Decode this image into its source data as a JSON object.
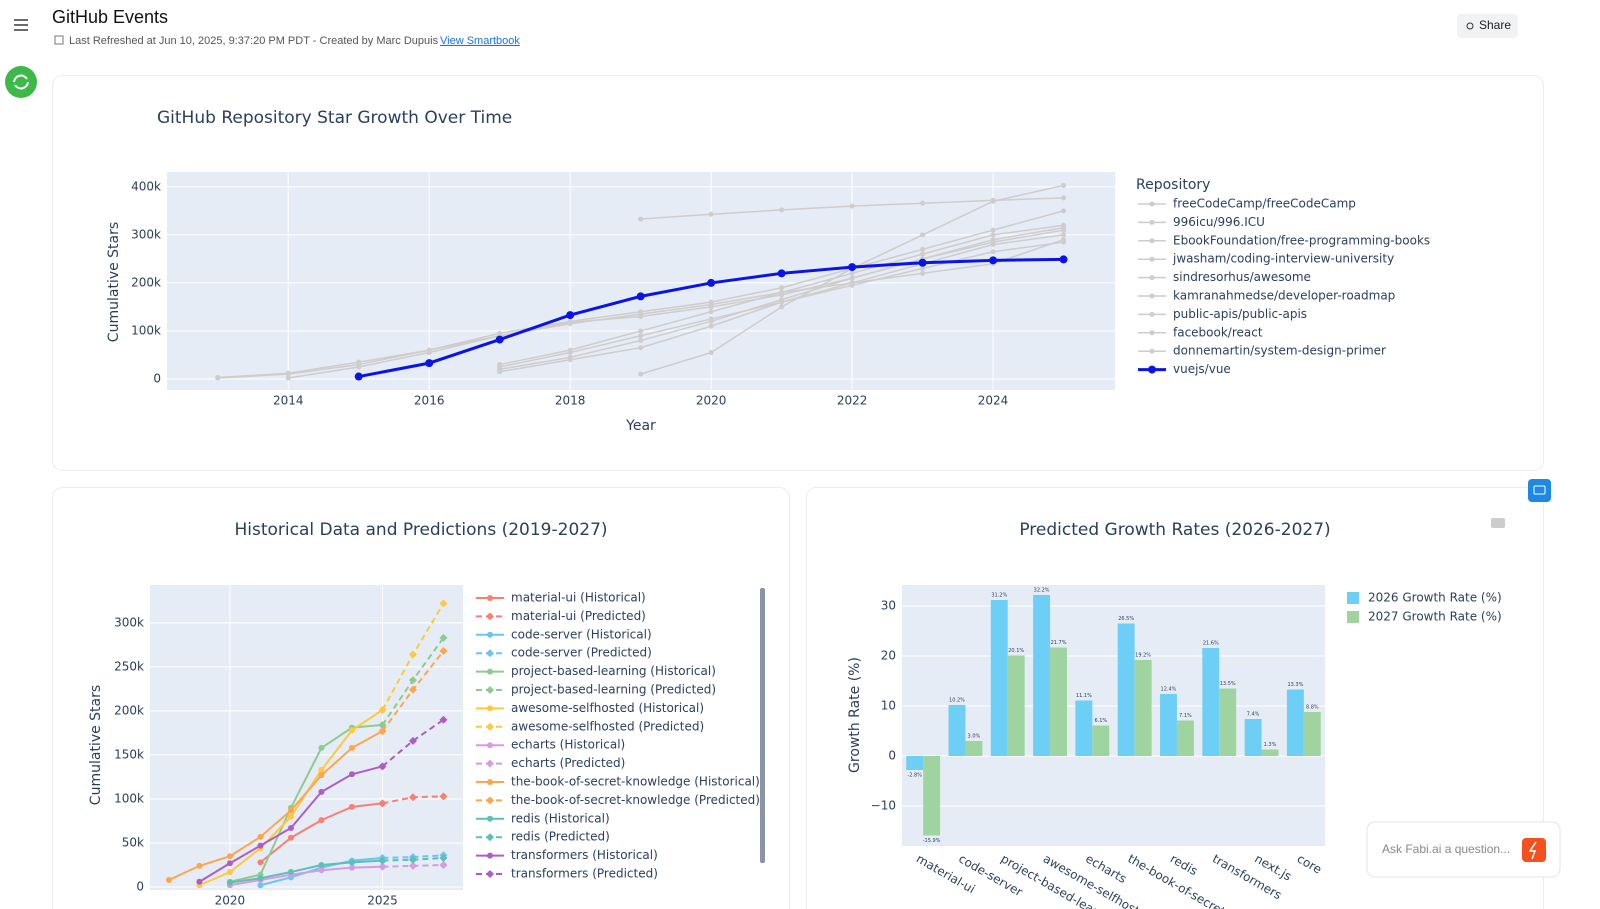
{
  "header": {
    "title": "GitHub Events",
    "subtitle": "Last Refreshed at Jun 10, 2025, 9:37:20 PM PDT - Created by Marc Dupuis",
    "link": "View Smartbook",
    "share": "Share"
  },
  "assistant": {
    "placeholder": "Ask Fabi.ai a question..."
  },
  "chart_data": [
    {
      "type": "line",
      "title": "GitHub Repository Star Growth Over Time",
      "x_label": "Year",
      "y_label": "Cumulative Stars",
      "legend_title": "Repository",
      "x": [
        2013,
        2014,
        2015,
        2016,
        2017,
        2018,
        2019,
        2020,
        2021,
        2022,
        2023,
        2024,
        2025
      ],
      "xlim": [
        2012.28,
        2025.73
      ],
      "xticks": [
        2014,
        2016,
        2018,
        2020,
        2022,
        2024
      ],
      "ylim": [
        -23000,
        431000
      ],
      "yticks": [
        0,
        {
          "value": 100000,
          "label": "100k"
        },
        {
          "value": 200000,
          "label": "200k"
        },
        {
          "value": 300000,
          "label": "300k"
        },
        {
          "value": 400000,
          "label": "400k"
        }
      ],
      "grid": true,
      "series": [
        {
          "name": "freeCodeCamp/freeCodeCamp",
          "color": "#cfcccc",
          "width": 1.5,
          "values": [
            null,
            null,
            null,
            null,
            null,
            null,
            333000,
            343000,
            352000,
            360000,
            366000,
            372000,
            377000
          ]
        },
        {
          "name": "996icu/996.ICU",
          "color": "#cfcccc",
          "width": 1.5,
          "values": [
            null,
            null,
            null,
            null,
            null,
            null,
            10000,
            55000,
            150000,
            230000,
            300000,
            370000,
            403000
          ]
        },
        {
          "name": "EbookFoundation/free-programming-books",
          "color": "#cfcccc",
          "width": 1.5,
          "values": [
            3000,
            12000,
            35000,
            60000,
            95000,
            120000,
            140000,
            160000,
            190000,
            230000,
            270000,
            310000,
            350000
          ]
        },
        {
          "name": "jwasham/coding-interview-university",
          "color": "#cfcccc",
          "width": 1.5,
          "values": [
            null,
            2000,
            25000,
            55000,
            90000,
            118000,
            130000,
            150000,
            175000,
            210000,
            250000,
            290000,
            315000
          ]
        },
        {
          "name": "sindresorhus/awesome",
          "color": "#cfcccc",
          "width": 1.5,
          "values": [
            null,
            null,
            null,
            null,
            30000,
            60000,
            100000,
            140000,
            180000,
            220000,
            260000,
            300000,
            320000
          ]
        },
        {
          "name": "kamranahmedse/developer-roadmap",
          "color": "#cfcccc",
          "width": 1.5,
          "values": [
            null,
            null,
            null,
            null,
            20000,
            45000,
            80000,
            120000,
            165000,
            210000,
            250000,
            285000,
            310000
          ]
        },
        {
          "name": "public-apis/public-apis",
          "color": "#cfcccc",
          "width": 1.5,
          "values": [
            null,
            null,
            null,
            null,
            15000,
            40000,
            65000,
            110000,
            160000,
            200000,
            240000,
            280000,
            300000
          ]
        },
        {
          "name": "facebook/react",
          "color": "#cfcccc",
          "width": 1.5,
          "values": [
            2000,
            10000,
            30000,
            60000,
            90000,
            115000,
            135000,
            155000,
            180000,
            200000,
            220000,
            240000,
            290000
          ]
        },
        {
          "name": "donnemartin/system-design-primer",
          "color": "#cfcccc",
          "width": 1.5,
          "values": [
            null,
            null,
            null,
            null,
            25000,
            55000,
            90000,
            125000,
            160000,
            195000,
            230000,
            265000,
            285000
          ]
        },
        {
          "name": "vuejs/vue",
          "color": "#0a14e6",
          "width": 3,
          "values": [
            null,
            null,
            5000,
            33000,
            82000,
            133000,
            172000,
            200000,
            220000,
            233000,
            242000,
            247000,
            249000
          ]
        }
      ]
    },
    {
      "type": "line",
      "title": "Historical Data and Predictions (2019-2027)",
      "y_label": "Cumulative Stars",
      "x": [
        2018,
        2019,
        2020,
        2021,
        2022,
        2023,
        2024,
        2025,
        2026,
        2027
      ],
      "xlim": [
        2017.38,
        2027.64
      ],
      "xticks": [
        2020,
        2025
      ],
      "ylim": [
        -3400,
        343000
      ],
      "yticks": [
        0,
        {
          "value": 50000,
          "label": "50k"
        },
        {
          "value": 100000,
          "label": "100k"
        },
        {
          "value": 150000,
          "label": "150k"
        },
        {
          "value": 200000,
          "label": "200k"
        },
        {
          "value": 250000,
          "label": "250k"
        },
        {
          "value": 300000,
          "label": "300k"
        }
      ],
      "grid": true,
      "series": [
        {
          "name": "material-ui (Historical)",
          "color": "#fa7f72",
          "line_style": "solid",
          "marker": "circle",
          "values": [
            null,
            null,
            null,
            28000,
            56000,
            76000,
            91000,
            95000,
            null,
            null
          ]
        },
        {
          "name": "material-ui (Predicted)",
          "color": "#fa7f72",
          "line_style": "dashed",
          "marker": "diamond",
          "values": [
            null,
            null,
            null,
            null,
            null,
            null,
            null,
            95000,
            102000,
            103000
          ]
        },
        {
          "name": "code-server (Historical)",
          "color": "#6cc5f0",
          "line_style": "solid",
          "marker": "circle",
          "values": [
            null,
            null,
            null,
            2000,
            11000,
            22000,
            30000,
            33000,
            null,
            null
          ]
        },
        {
          "name": "code-server (Predicted)",
          "color": "#6cc5f0",
          "line_style": "dashed",
          "marker": "diamond",
          "values": [
            null,
            null,
            null,
            null,
            null,
            null,
            null,
            33000,
            34000,
            36000
          ]
        },
        {
          "name": "project-based-learning (Historical)",
          "color": "#8fcb8f",
          "line_style": "solid",
          "marker": "circle",
          "values": [
            null,
            null,
            6000,
            14000,
            90000,
            158000,
            181000,
            184000,
            null,
            null
          ]
        },
        {
          "name": "project-based-learning (Predicted)",
          "color": "#8fcb8f",
          "line_style": "dashed",
          "marker": "diamond",
          "values": [
            null,
            null,
            null,
            null,
            null,
            null,
            null,
            184000,
            235000,
            283000
          ]
        },
        {
          "name": "awesome-selfhosted (Historical)",
          "color": "#ffc83d",
          "line_style": "solid",
          "marker": "circle",
          "values": [
            null,
            2000,
            17000,
            44000,
            80000,
            133000,
            178000,
            201000,
            null,
            null
          ]
        },
        {
          "name": "awesome-selfhosted (Predicted)",
          "color": "#ffc83d",
          "line_style": "dashed",
          "marker": "diamond",
          "values": [
            null,
            null,
            null,
            null,
            null,
            null,
            null,
            201000,
            264000,
            322000
          ]
        },
        {
          "name": "echarts (Historical)",
          "color": "#d79be0",
          "line_style": "solid",
          "marker": "circle",
          "values": [
            null,
            null,
            2000,
            8000,
            14000,
            19000,
            22000,
            23000,
            null,
            null
          ]
        },
        {
          "name": "echarts (Predicted)",
          "color": "#d79be0",
          "line_style": "dashed",
          "marker": "diamond",
          "values": [
            null,
            null,
            null,
            null,
            null,
            null,
            null,
            23000,
            24000,
            25000
          ]
        },
        {
          "name": "the-book-of-secret-knowledge (Historical)",
          "color": "#ffa64d",
          "line_style": "solid",
          "marker": "circle",
          "values": [
            8000,
            24000,
            35000,
            57000,
            87000,
            127000,
            158000,
            177000,
            null,
            null
          ]
        },
        {
          "name": "the-book-of-secret-knowledge (Predicted)",
          "color": "#ffa64d",
          "line_style": "dashed",
          "marker": "diamond",
          "values": [
            null,
            null,
            null,
            null,
            null,
            null,
            null,
            177000,
            224000,
            268000
          ]
        },
        {
          "name": "redis (Historical)",
          "color": "#5dbfb5",
          "line_style": "solid",
          "marker": "circle",
          "values": [
            null,
            null,
            5000,
            10000,
            17000,
            25000,
            28000,
            30000,
            null,
            null
          ]
        },
        {
          "name": "redis (Predicted)",
          "color": "#5dbfb5",
          "line_style": "dashed",
          "marker": "diamond",
          "values": [
            null,
            null,
            null,
            null,
            null,
            null,
            null,
            30000,
            31000,
            33000
          ]
        },
        {
          "name": "transformers (Historical)",
          "color": "#b05cc6",
          "line_style": "solid",
          "marker": "circle",
          "values": [
            null,
            6000,
            27000,
            47000,
            67000,
            108000,
            128000,
            137000,
            null,
            null
          ]
        },
        {
          "name": "transformers (Predicted)",
          "color": "#b05cc6",
          "line_style": "dashed",
          "marker": "diamond",
          "values": [
            null,
            null,
            null,
            null,
            null,
            null,
            null,
            137000,
            166000,
            190000
          ]
        }
      ]
    },
    {
      "type": "bar",
      "title": "Predicted Growth Rates (2026-2027)",
      "y_label": "Growth Rate (%)",
      "categories": [
        "material-ui",
        "code-server",
        "project-based-learning",
        "awesome-selfhosted",
        "echarts",
        "the-book-of-secret-knowledge",
        "redis",
        "transformers",
        "next.js",
        "core"
      ],
      "ylim": [
        -18,
        34.2
      ],
      "yticks": [
        {
          "value": -10,
          "label": "−10"
        },
        0,
        10,
        20,
        30
      ],
      "grid": true,
      "series": [
        {
          "name": "2026 Growth Rate (%)",
          "color": "#6ecff6",
          "values": [
            -2.8,
            10.2,
            31.2,
            32.2,
            11.1,
            26.5,
            12.4,
            21.6,
            7.4,
            13.3
          ],
          "value_labels": [
            "-2.8%",
            "10.2%",
            "31.2%",
            "32.2%",
            "11.1%",
            "26.5%",
            "12.4%",
            "21.6%",
            "7.4%",
            "13.3%"
          ]
        },
        {
          "name": "2027 Growth Rate (%)",
          "color": "#9fd4a0",
          "values": [
            -15.9,
            3.0,
            20.1,
            21.7,
            6.1,
            19.2,
            7.1,
            13.5,
            1.3,
            8.8
          ],
          "value_labels": [
            "-15.9%",
            "3.0%",
            "20.1%",
            "21.7%",
            "6.1%",
            "19.2%",
            "7.1%",
            "13.5%",
            "1.3%",
            "8.8%"
          ]
        }
      ]
    }
  ]
}
